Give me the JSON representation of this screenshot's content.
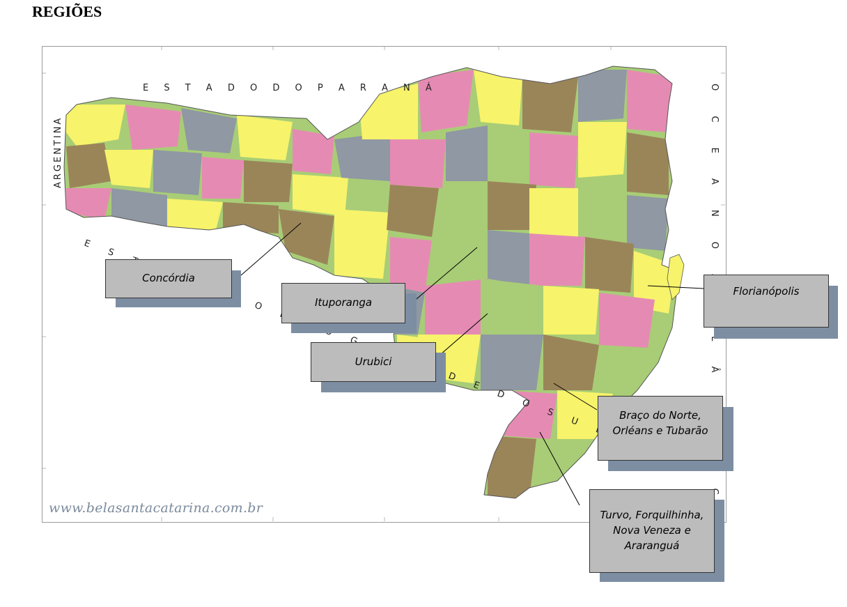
{
  "heading": "REGIÕES",
  "watermark": "www.belasantacatarina.com.br",
  "border_labels": {
    "argentina": "ARGENTINA",
    "estado_do_parana": "E S T A D O    D O    P A R A N Á",
    "estado_do_rio_grande_do_sul": "E S T A D O    D O    R I O    G R A N D E    D O    S U L",
    "oceano_atlantico": "O C E A N O    A T L Â N T I C O"
  },
  "callouts": [
    {
      "id": "concordia",
      "label": "Concórdia"
    },
    {
      "id": "ituporanga",
      "label": "Ituporanga"
    },
    {
      "id": "urubici",
      "label": "Urubici"
    },
    {
      "id": "florianopolis",
      "label": "Florianópolis"
    },
    {
      "id": "braco-do-norte",
      "label": "Braço do Norte, Orléans e Tubarão"
    },
    {
      "id": "turvo",
      "label": "Turvo, Forquilhinha, Nova Veneza e Araranguá"
    }
  ],
  "colors": {
    "region_yellow": "#f7f36b",
    "region_pink": "#e58bb3",
    "region_green": "#a8cd76",
    "region_gray": "#8f98a3",
    "region_brown": "#9a8559",
    "callout_box": "#bcbcbc",
    "callout_shadow": "#7d8ea3"
  }
}
